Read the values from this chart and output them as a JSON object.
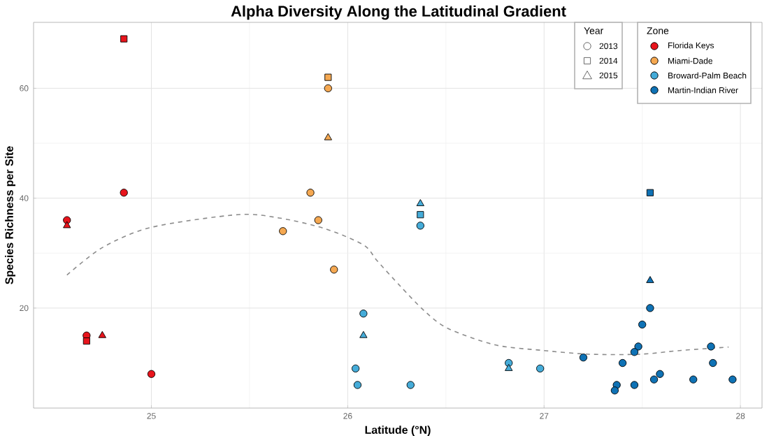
{
  "chart_data": {
    "type": "scatter",
    "title": "Alpha Diversity Along the Latitudinal Gradient",
    "xlabel": "Latitude (°N)",
    "ylabel": "Species Richness per Site",
    "xlim": [
      24.4,
      28.11
    ],
    "ylim": [
      1.8,
      72
    ],
    "xticks": [
      25,
      26,
      27,
      28
    ],
    "yticks": [
      20,
      40,
      60
    ],
    "grid": true,
    "legend": "top right",
    "legend_title": "Zone",
    "annotations": [
      "Year",
      "2013",
      "2014",
      "2015"
    ],
    "series": [
      {
        "name": "Florida Keys",
        "color": "#e8141c",
        "x": [
          24.57,
          24.57,
          24.86,
          24.86,
          24.67,
          24.67,
          24.75,
          25.0
        ],
        "values": [
          36,
          35,
          69,
          41,
          15,
          14,
          15,
          8
        ],
        "marker": [
          "circle",
          "triangle",
          "square",
          "circle",
          "circle",
          "square",
          "triangle",
          "circle"
        ]
      },
      {
        "name": "Miami-Dade",
        "color": "#f5a851",
        "x": [
          25.9,
          25.9,
          25.9,
          25.81,
          25.85,
          25.67,
          25.93
        ],
        "values": [
          62,
          60,
          51,
          41,
          36,
          34,
          27
        ],
        "marker": [
          "square",
          "circle",
          "triangle",
          "circle",
          "circle",
          "circle",
          "circle"
        ]
      },
      {
        "name": "Broward-Palm Beach",
        "color": "#45acd9",
        "x": [
          26.08,
          26.08,
          26.04,
          26.05,
          26.37,
          26.37,
          26.37,
          26.32,
          26.82,
          26.82,
          26.98
        ],
        "values": [
          19,
          15,
          9,
          6,
          39,
          37,
          35,
          6,
          10,
          9,
          9
        ],
        "marker": [
          "circle",
          "triangle",
          "circle",
          "circle",
          "triangle",
          "square",
          "circle",
          "circle",
          "circle",
          "triangle",
          "circle"
        ]
      },
      {
        "name": "Martin-Indian River",
        "color": "#0f72b5",
        "x": [
          27.54,
          27.54,
          27.54,
          27.5,
          27.48,
          27.46,
          27.2,
          27.4,
          27.37,
          27.36,
          27.46,
          27.56,
          27.59,
          27.76,
          27.85,
          27.86,
          27.96
        ],
        "values": [
          41,
          25,
          20,
          17,
          13,
          12,
          11,
          10,
          6,
          5,
          6,
          7,
          8,
          7,
          13,
          10,
          7
        ],
        "marker": [
          "square",
          "triangle",
          "circle",
          "circle",
          "circle",
          "circle",
          "circle",
          "circle",
          "circle",
          "circle",
          "circle",
          "circle",
          "circle",
          "circle",
          "circle",
          "circle",
          "circle"
        ]
      },
      {
        "type": "line",
        "color": "#8c8c8c",
        "line_style": "dashed",
        "marker": "none",
        "x": [
          24.57,
          24.75,
          25.0,
          25.44,
          25.65,
          25.88,
          26.08,
          26.15,
          26.27,
          26.39,
          26.51,
          26.75,
          26.99,
          27.23,
          27.49,
          27.7,
          27.94
        ],
        "values": [
          26,
          31,
          34.7,
          37,
          36.4,
          34.5,
          31.5,
          28.6,
          23.9,
          19.5,
          16.3,
          13.3,
          12.3,
          11.6,
          11.6,
          12.3,
          12.9
        ]
      }
    ]
  }
}
